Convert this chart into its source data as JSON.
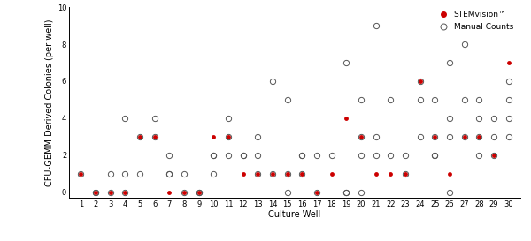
{
  "stemvision": {
    "1": 1,
    "2": 0,
    "3": 0,
    "4": 0,
    "5": 3,
    "6": 3,
    "7": 0,
    "8": 0,
    "9": 0,
    "10": 3,
    "11": 3,
    "12": 1,
    "13": 1,
    "14": 1,
    "15": 1,
    "16": 1,
    "17": 0,
    "18": 1,
    "19": 4,
    "20": 3,
    "21": 1,
    "22": 1,
    "23": 1,
    "24": 6,
    "25": 3,
    "26": 1,
    "27": 3,
    "28": 3,
    "29": 2,
    "30": 7
  },
  "manual": {
    "1": [
      1
    ],
    "2": [
      0,
      0
    ],
    "3": [
      1,
      0
    ],
    "4": [
      4,
      0,
      1
    ],
    "5": [
      3,
      1
    ],
    "6": [
      4,
      3
    ],
    "7": [
      2,
      1,
      1
    ],
    "8": [
      1,
      0
    ],
    "9": [
      0,
      0
    ],
    "10": [
      2,
      2,
      1
    ],
    "11": [
      4,
      3,
      2
    ],
    "12": [
      2,
      2
    ],
    "13": [
      3,
      2,
      1
    ],
    "14": [
      6,
      1
    ],
    "15": [
      5,
      1,
      0
    ],
    "16": [
      2,
      2,
      1
    ],
    "17": [
      0,
      2
    ],
    "18": [
      2
    ],
    "19": [
      7,
      0,
      0
    ],
    "20": [
      5,
      3,
      2,
      0
    ],
    "21": [
      9,
      3,
      2
    ],
    "22": [
      5,
      2
    ],
    "23": [
      2,
      1
    ],
    "24": [
      6,
      5,
      3
    ],
    "25": [
      5,
      3,
      2,
      2
    ],
    "26": [
      7,
      4,
      3,
      0
    ],
    "27": [
      8,
      5,
      3
    ],
    "28": [
      5,
      4,
      3,
      2
    ],
    "29": [
      4,
      3,
      2
    ],
    "30": [
      6,
      5,
      4,
      3
    ]
  },
  "stemvision_color": "#cc0000",
  "manual_color": "#555555",
  "xlabel": "Culture Well",
  "ylabel": "CFU-GEMM Derived Colonies (per well)",
  "ylim": [
    -0.3,
    10
  ],
  "yticks": [
    0,
    2,
    4,
    6,
    8,
    10
  ],
  "legend_stemvision": "STEMvision™",
  "legend_manual": "Manual Counts",
  "marker_size_stem": 3.5,
  "marker_size_manual": 4.5,
  "tick_fontsize": 6,
  "label_fontsize": 7,
  "legend_fontsize": 6.5
}
